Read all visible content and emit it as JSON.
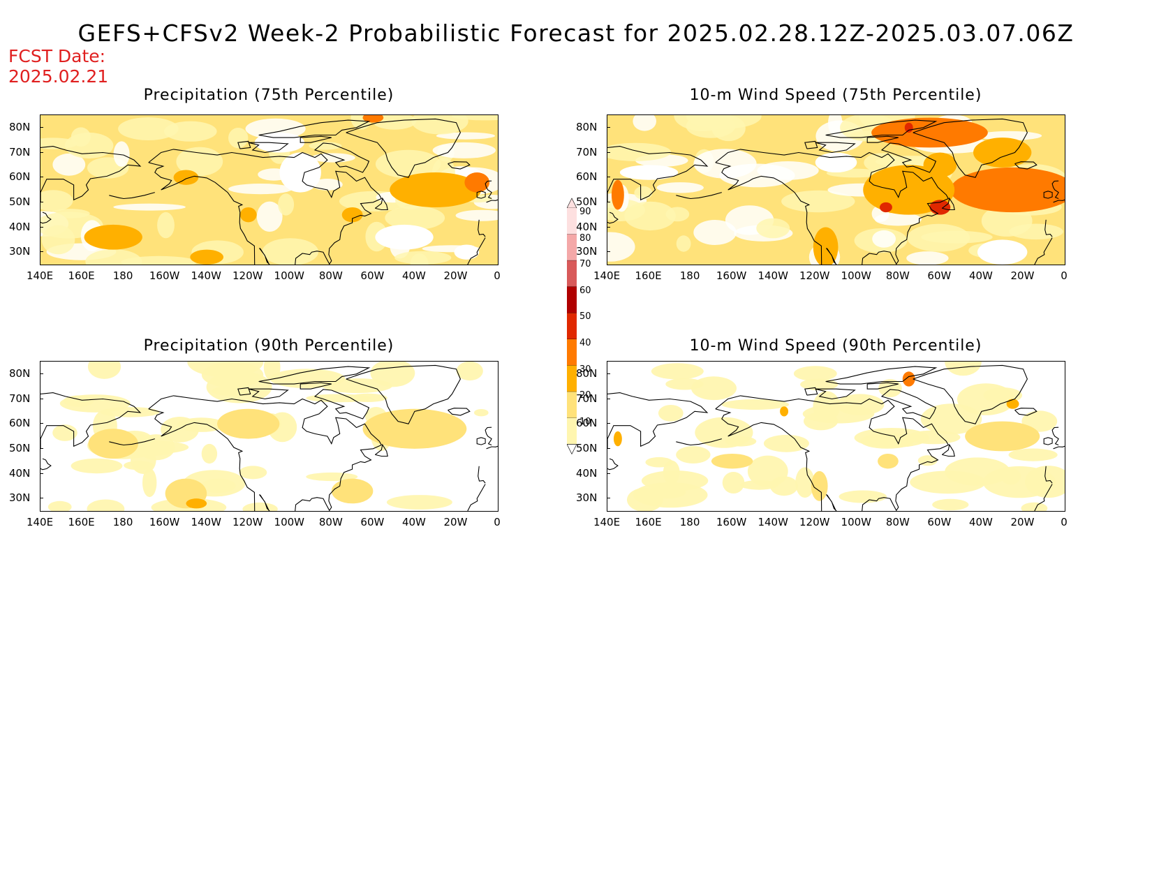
{
  "title": "GEFS+CFSv2 Week-2 Probabilistic Forecast for 2025.02.28.12Z-2025.03.07.06Z",
  "fcst_date_label": "FCST Date:",
  "fcst_date_value": "2025.02.21",
  "colors": {
    "levels": [
      10,
      20,
      30,
      40,
      50,
      60,
      70,
      80,
      90
    ],
    "fills": [
      "#fff6b0",
      "#ffe27a",
      "#ffb000",
      "#ff7a00",
      "#e02800",
      "#b00000",
      "#d85a5a",
      "#f4a8a8",
      "#fde0e0"
    ],
    "coast": "#000000",
    "fcst_date": "#e01f1f"
  },
  "colorbar": {
    "labels": [
      "90",
      "80",
      "70",
      "60",
      "50",
      "40",
      "30",
      "20",
      "10"
    ]
  },
  "axes": {
    "lat_labels": [
      "80N",
      "70N",
      "60N",
      "50N",
      "40N",
      "30N"
    ],
    "lon_labels": [
      "140E",
      "160E",
      "180",
      "160W",
      "140W",
      "120W",
      "100W",
      "80W",
      "60W",
      "40W",
      "20W",
      "0"
    ]
  },
  "panels": [
    {
      "id": "precip75",
      "title": "Precipitation (75th Percentile)",
      "blobs": [
        {
          "lon": 175,
          "lat": 36,
          "rx": 14,
          "ry": 5,
          "level": 2
        },
        {
          "lon": -140,
          "lat": 28,
          "rx": 8,
          "ry": 3,
          "level": 2
        },
        {
          "lon": -30,
          "lat": 55,
          "rx": 22,
          "ry": 7,
          "level": 2
        },
        {
          "lon": -10,
          "lat": 58,
          "rx": 6,
          "ry": 4,
          "level": 3
        },
        {
          "lon": -150,
          "lat": 60,
          "rx": 6,
          "ry": 3,
          "level": 2
        },
        {
          "lon": -60,
          "lat": 84,
          "rx": 5,
          "ry": 2,
          "level": 3
        },
        {
          "lon": -70,
          "lat": 45,
          "rx": 5,
          "ry": 3,
          "level": 2
        },
        {
          "lon": -120,
          "lat": 45,
          "rx": 4,
          "ry": 3,
          "level": 2
        }
      ],
      "gaps": [
        {
          "lon": -45,
          "lat": 36,
          "rx": 14,
          "ry": 5
        },
        {
          "lon": -95,
          "lat": 62,
          "rx": 10,
          "ry": 8
        },
        {
          "lon": -105,
          "lat": 74,
          "rx": 12,
          "ry": 4
        },
        {
          "lon": -15,
          "lat": 30,
          "rx": 6,
          "ry": 3
        }
      ]
    },
    {
      "id": "wind75",
      "title": "10-m Wind Speed (75th Percentile)",
      "blobs": [
        {
          "lon": -25,
          "lat": 55,
          "rx": 30,
          "ry": 9,
          "level": 3
        },
        {
          "lon": -65,
          "lat": 78,
          "rx": 28,
          "ry": 6,
          "level": 3
        },
        {
          "lon": 145,
          "lat": 53,
          "rx": 3,
          "ry": 6,
          "level": 3
        },
        {
          "lon": -75,
          "lat": 55,
          "rx": 22,
          "ry": 10,
          "level": 2
        },
        {
          "lon": -115,
          "lat": 32,
          "rx": 6,
          "ry": 8,
          "level": 2
        },
        {
          "lon": -60,
          "lat": 48,
          "rx": 5,
          "ry": 3,
          "level": 4
        },
        {
          "lon": -86,
          "lat": 48,
          "rx": 3,
          "ry": 2,
          "level": 4
        },
        {
          "lon": -75,
          "lat": 80,
          "rx": 2,
          "ry": 2,
          "level": 4
        },
        {
          "lon": -60,
          "lat": 65,
          "rx": 8,
          "ry": 5,
          "level": 2
        },
        {
          "lon": -30,
          "lat": 70,
          "rx": 14,
          "ry": 6,
          "level": 2
        }
      ],
      "gaps": [
        {
          "lon": -30,
          "lat": 30,
          "rx": 12,
          "ry": 5
        },
        {
          "lon": 160,
          "lat": 62,
          "rx": 14,
          "ry": 3
        },
        {
          "lon": -110,
          "lat": 66,
          "rx": 10,
          "ry": 4
        }
      ]
    },
    {
      "id": "precip90",
      "title": "Precipitation (90th Percentile)",
      "blobs": [
        {
          "lon": -150,
          "lat": 32,
          "rx": 10,
          "ry": 6,
          "level": 1
        },
        {
          "lon": -145,
          "lat": 28,
          "rx": 5,
          "ry": 2,
          "level": 2
        },
        {
          "lon": -70,
          "lat": 33,
          "rx": 10,
          "ry": 5,
          "level": 1
        },
        {
          "lon": -40,
          "lat": 58,
          "rx": 25,
          "ry": 8,
          "level": 1
        },
        {
          "lon": 175,
          "lat": 52,
          "rx": 12,
          "ry": 6,
          "level": 1
        },
        {
          "lon": -120,
          "lat": 60,
          "rx": 15,
          "ry": 6,
          "level": 1
        }
      ],
      "gaps": []
    },
    {
      "id": "wind90",
      "title": "10-m Wind Speed (90th Percentile)",
      "blobs": [
        {
          "lon": -30,
          "lat": 55,
          "rx": 18,
          "ry": 6,
          "level": 1
        },
        {
          "lon": -75,
          "lat": 78,
          "rx": 3,
          "ry": 3,
          "level": 3
        },
        {
          "lon": -135,
          "lat": 65,
          "rx": 2,
          "ry": 2,
          "level": 2
        },
        {
          "lon": -25,
          "lat": 68,
          "rx": 3,
          "ry": 2,
          "level": 2
        },
        {
          "lon": -118,
          "lat": 35,
          "rx": 4,
          "ry": 6,
          "level": 1
        },
        {
          "lon": 145,
          "lat": 54,
          "rx": 2,
          "ry": 3,
          "level": 2
        },
        {
          "lon": -85,
          "lat": 45,
          "rx": 5,
          "ry": 3,
          "level": 1
        },
        {
          "lon": -160,
          "lat": 45,
          "rx": 10,
          "ry": 3,
          "level": 1
        }
      ],
      "gaps": []
    }
  ]
}
